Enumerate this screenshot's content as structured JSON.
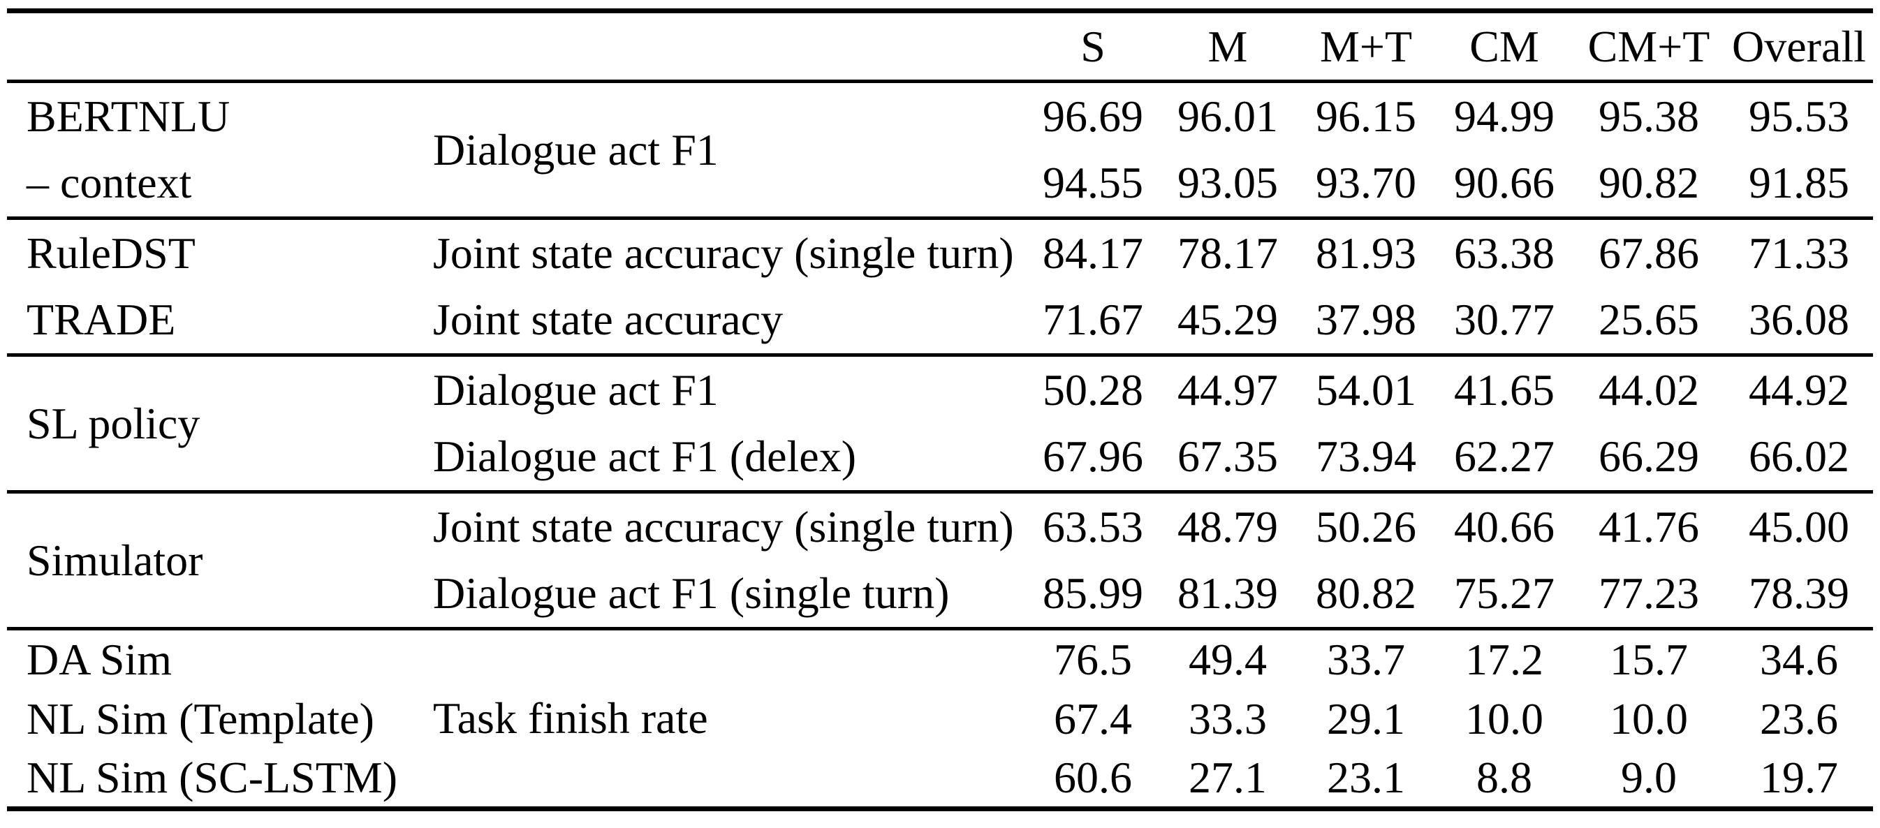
{
  "table": {
    "columns": [
      "S",
      "M",
      "M+T",
      "CM",
      "CM+T",
      "Overall"
    ],
    "sections": [
      {
        "rows": [
          {
            "model": "BERTNLU",
            "metric": "Dialogue act F1",
            "values": [
              "96.69",
              "96.01",
              "96.15",
              "94.99",
              "95.38",
              "95.53"
            ]
          },
          {
            "model": "– context",
            "values": [
              "94.55",
              "93.05",
              "93.70",
              "90.66",
              "90.82",
              "91.85"
            ]
          }
        ]
      },
      {
        "rows": [
          {
            "model": "RuleDST",
            "metric": "Joint state accuracy (single turn)",
            "values": [
              "84.17",
              "78.17",
              "81.93",
              "63.38",
              "67.86",
              "71.33"
            ]
          },
          {
            "model": "TRADE",
            "metric": "Joint state accuracy",
            "values": [
              "71.67",
              "45.29",
              "37.98",
              "30.77",
              "25.65",
              "36.08"
            ]
          }
        ]
      },
      {
        "rows": [
          {
            "model": "SL policy",
            "metric": "Dialogue act F1",
            "values": [
              "50.28",
              "44.97",
              "54.01",
              "41.65",
              "44.02",
              "44.92"
            ]
          },
          {
            "metric": "Dialogue act F1 (delex)",
            "values": [
              "67.96",
              "67.35",
              "73.94",
              "62.27",
              "66.29",
              "66.02"
            ]
          }
        ]
      },
      {
        "rows": [
          {
            "model": "Simulator",
            "metric": "Joint state accuracy (single turn)",
            "values": [
              "63.53",
              "48.79",
              "50.26",
              "40.66",
              "41.76",
              "45.00"
            ]
          },
          {
            "metric": "Dialogue act F1 (single turn)",
            "values": [
              "85.99",
              "81.39",
              "80.82",
              "75.27",
              "77.23",
              "78.39"
            ]
          }
        ]
      },
      {
        "rows": [
          {
            "model": "DA Sim",
            "metric": "Task finish rate",
            "values": [
              "76.5",
              "49.4",
              "33.7",
              "17.2",
              "15.7",
              "34.6"
            ]
          },
          {
            "model": "NL Sim (Template)",
            "values": [
              "67.4",
              "33.3",
              "29.1",
              "10.0",
              "10.0",
              "23.6"
            ]
          },
          {
            "model": "NL Sim (SC-LSTM)",
            "values": [
              "60.6",
              "27.1",
              "23.1",
              "8.8",
              "9.0",
              "19.7"
            ]
          }
        ]
      }
    ]
  }
}
